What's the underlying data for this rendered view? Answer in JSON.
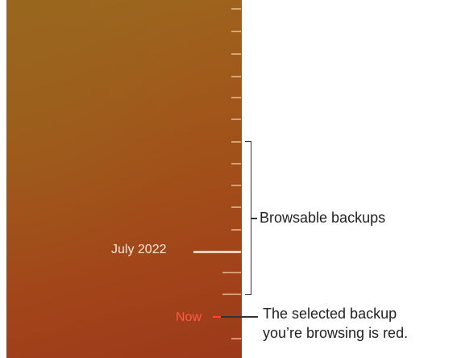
{
  "timeline": {
    "date_label": "July 2022",
    "now_label": "Now"
  },
  "callouts": {
    "browsable": "Browsable backups",
    "selected_line1": "The selected backup",
    "selected_line2": "you’re browsing is red."
  },
  "colors": {
    "selected": "#ff4a3a",
    "wallpaper": "#a2481a"
  }
}
